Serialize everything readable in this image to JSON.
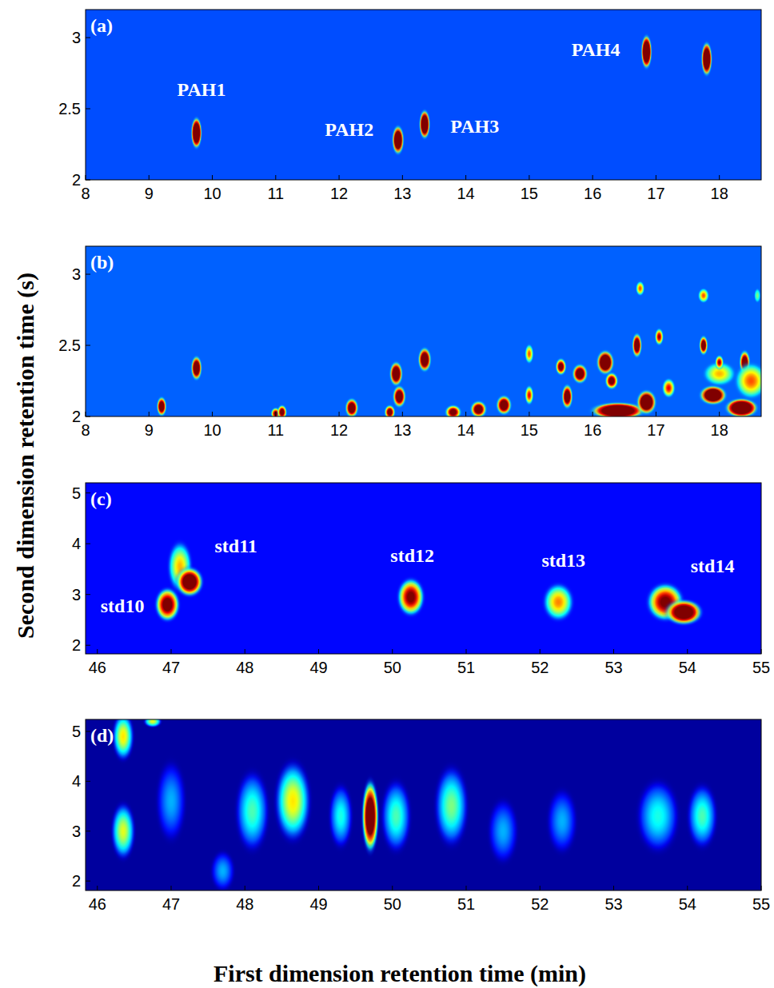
{
  "figure": {
    "xlabel": "First dimension retention time (min)",
    "ylabel": "Second dimension retention time (s)"
  },
  "chart_data": [
    {
      "type": "heatmap",
      "title": "(a)",
      "xlim": [
        8,
        18.66
      ],
      "ylim": [
        2,
        3.197
      ],
      "xticks": [
        8,
        9,
        10,
        11,
        12,
        13,
        14,
        15,
        16,
        17,
        18
      ],
      "yticks": [
        2,
        2.5,
        3
      ],
      "zlim": [
        0,
        1
      ],
      "baseline": 0.2,
      "peaks": [
        {
          "x": 9.75,
          "y": 2.33,
          "value": 1.8,
          "dx": 0.1,
          "dy": 0.13
        },
        {
          "x": 12.93,
          "y": 2.28,
          "value": 1.6,
          "dx": 0.11,
          "dy": 0.12
        },
        {
          "x": 13.35,
          "y": 2.39,
          "value": 1.7,
          "dx": 0.1,
          "dy": 0.12
        },
        {
          "x": 16.85,
          "y": 2.9,
          "value": 1.8,
          "dx": 0.1,
          "dy": 0.14
        },
        {
          "x": 17.8,
          "y": 2.85,
          "value": 1.7,
          "dx": 0.1,
          "dy": 0.14
        }
      ],
      "annotations": [
        {
          "text": "PAH1",
          "x": 9.83,
          "y": 2.62
        },
        {
          "text": "PAH2",
          "x": 12.16,
          "y": 2.34
        },
        {
          "text": "PAH3",
          "x": 14.14,
          "y": 2.36
        },
        {
          "text": "PAH4",
          "x": 16.05,
          "y": 2.9
        }
      ]
    },
    {
      "type": "heatmap",
      "title": "(b)",
      "xlim": [
        8,
        18.66
      ],
      "ylim": [
        2,
        3.197
      ],
      "xticks": [
        8,
        9,
        10,
        11,
        12,
        13,
        14,
        15,
        16,
        17,
        18
      ],
      "yticks": [
        2,
        2.5,
        3
      ],
      "zlim": [
        0,
        1
      ],
      "baseline": 0.22,
      "peaks": [
        {
          "x": 9.2,
          "y": 2.07,
          "value": 1.4,
          "dx": 0.09,
          "dy": 0.08
        },
        {
          "x": 9.75,
          "y": 2.34,
          "value": 1.5,
          "dx": 0.1,
          "dy": 0.1
        },
        {
          "x": 11.0,
          "y": 2.02,
          "value": 1.1,
          "dx": 0.09,
          "dy": 0.05
        },
        {
          "x": 11.1,
          "y": 2.03,
          "value": 1.2,
          "dx": 0.09,
          "dy": 0.06
        },
        {
          "x": 12.2,
          "y": 2.06,
          "value": 1.4,
          "dx": 0.12,
          "dy": 0.08
        },
        {
          "x": 12.9,
          "y": 2.3,
          "value": 1.5,
          "dx": 0.12,
          "dy": 0.1
        },
        {
          "x": 12.95,
          "y": 2.14,
          "value": 1.4,
          "dx": 0.12,
          "dy": 0.09
        },
        {
          "x": 12.8,
          "y": 2.03,
          "value": 1.2,
          "dx": 0.1,
          "dy": 0.06
        },
        {
          "x": 13.35,
          "y": 2.4,
          "value": 1.5,
          "dx": 0.12,
          "dy": 0.1
        },
        {
          "x": 13.8,
          "y": 2.03,
          "value": 1.2,
          "dx": 0.15,
          "dy": 0.06
        },
        {
          "x": 14.2,
          "y": 2.05,
          "value": 1.3,
          "dx": 0.15,
          "dy": 0.07
        },
        {
          "x": 14.6,
          "y": 2.08,
          "value": 1.4,
          "dx": 0.14,
          "dy": 0.08
        },
        {
          "x": 15.0,
          "y": 2.44,
          "value": 0.8,
          "dx": 0.08,
          "dy": 0.08
        },
        {
          "x": 15.0,
          "y": 2.15,
          "value": 0.9,
          "dx": 0.08,
          "dy": 0.08
        },
        {
          "x": 15.5,
          "y": 2.35,
          "value": 1.2,
          "dx": 0.1,
          "dy": 0.07
        },
        {
          "x": 15.6,
          "y": 2.14,
          "value": 1.4,
          "dx": 0.1,
          "dy": 0.1
        },
        {
          "x": 15.8,
          "y": 2.3,
          "value": 1.4,
          "dx": 0.14,
          "dy": 0.08
        },
        {
          "x": 16.2,
          "y": 2.38,
          "value": 1.6,
          "dx": 0.16,
          "dy": 0.1
        },
        {
          "x": 16.3,
          "y": 2.25,
          "value": 1.2,
          "dx": 0.12,
          "dy": 0.07
        },
        {
          "x": 16.4,
          "y": 2.04,
          "value": 1.8,
          "dx": 0.5,
          "dy": 0.07
        },
        {
          "x": 16.7,
          "y": 2.5,
          "value": 1.4,
          "dx": 0.09,
          "dy": 0.1
        },
        {
          "x": 16.75,
          "y": 2.9,
          "value": 0.8,
          "dx": 0.08,
          "dy": 0.06
        },
        {
          "x": 16.85,
          "y": 2.1,
          "value": 1.6,
          "dx": 0.18,
          "dy": 0.1
        },
        {
          "x": 17.05,
          "y": 2.56,
          "value": 1.0,
          "dx": 0.08,
          "dy": 0.07
        },
        {
          "x": 17.2,
          "y": 2.2,
          "value": 0.9,
          "dx": 0.12,
          "dy": 0.08
        },
        {
          "x": 17.75,
          "y": 2.85,
          "value": 0.8,
          "dx": 0.1,
          "dy": 0.06
        },
        {
          "x": 17.75,
          "y": 2.5,
          "value": 1.3,
          "dx": 0.08,
          "dy": 0.08
        },
        {
          "x": 17.9,
          "y": 2.15,
          "value": 1.6,
          "dx": 0.25,
          "dy": 0.08
        },
        {
          "x": 18.0,
          "y": 2.3,
          "value": 0.7,
          "dx": 0.3,
          "dy": 0.1
        },
        {
          "x": 18.0,
          "y": 2.38,
          "value": 1.0,
          "dx": 0.08,
          "dy": 0.06
        },
        {
          "x": 18.4,
          "y": 2.38,
          "value": 1.3,
          "dx": 0.1,
          "dy": 0.1
        },
        {
          "x": 18.35,
          "y": 2.06,
          "value": 1.8,
          "dx": 0.3,
          "dy": 0.08
        },
        {
          "x": 18.5,
          "y": 2.25,
          "value": 0.8,
          "dx": 0.3,
          "dy": 0.15
        },
        {
          "x": 18.6,
          "y": 2.85,
          "value": 0.5,
          "dx": 0.06,
          "dy": 0.06
        }
      ],
      "annotations": []
    },
    {
      "type": "heatmap",
      "title": "(c)",
      "xlim": [
        45.84,
        55
      ],
      "ylim": [
        1.83,
        5.2
      ],
      "xticks": [
        46,
        47,
        48,
        49,
        50,
        51,
        52,
        53,
        54,
        55
      ],
      "yticks": [
        2,
        3,
        4,
        5
      ],
      "zlim": [
        0,
        1
      ],
      "baseline": 0.13,
      "peaks": [
        {
          "x": 46.95,
          "y": 2.8,
          "value": 1.2,
          "dx": 0.2,
          "dy": 0.4
        },
        {
          "x": 47.12,
          "y": 3.55,
          "value": 0.7,
          "dx": 0.2,
          "dy": 0.6
        },
        {
          "x": 47.25,
          "y": 3.25,
          "value": 1.4,
          "dx": 0.22,
          "dy": 0.35
        },
        {
          "x": 50.25,
          "y": 2.95,
          "value": 1.1,
          "dx": 0.22,
          "dy": 0.45
        },
        {
          "x": 52.25,
          "y": 2.85,
          "value": 0.75,
          "dx": 0.25,
          "dy": 0.45
        },
        {
          "x": 53.7,
          "y": 2.85,
          "value": 1.1,
          "dx": 0.3,
          "dy": 0.45
        },
        {
          "x": 53.95,
          "y": 2.65,
          "value": 1.5,
          "dx": 0.3,
          "dy": 0.3
        }
      ],
      "annotations": [
        {
          "text": "std10",
          "x": 46.34,
          "y": 2.74
        },
        {
          "text": "std11",
          "x": 47.88,
          "y": 3.91
        },
        {
          "text": "std12",
          "x": 50.27,
          "y": 3.72
        },
        {
          "text": "std13",
          "x": 52.32,
          "y": 3.64
        },
        {
          "text": "std14",
          "x": 54.34,
          "y": 3.53
        }
      ]
    },
    {
      "type": "heatmap",
      "title": "(d)",
      "xlim": [
        45.84,
        55
      ],
      "ylim": [
        1.81,
        5.24
      ],
      "xticks": [
        46,
        47,
        48,
        49,
        50,
        51,
        52,
        53,
        54,
        55
      ],
      "yticks": [
        2,
        3,
        4,
        5
      ],
      "zlim": [
        0,
        1
      ],
      "baseline": 0.03,
      "peaks": [
        {
          "x": 46.35,
          "y": 3.0,
          "value": 0.6,
          "dx": 0.2,
          "dy": 0.7
        },
        {
          "x": 46.35,
          "y": 4.9,
          "value": 0.65,
          "dx": 0.18,
          "dy": 0.6
        },
        {
          "x": 46.75,
          "y": 5.2,
          "value": 0.6,
          "dx": 0.15,
          "dy": 0.15
        },
        {
          "x": 47.0,
          "y": 3.6,
          "value": 0.3,
          "dx": 0.25,
          "dy": 1.0
        },
        {
          "x": 47.7,
          "y": 2.2,
          "value": 0.3,
          "dx": 0.2,
          "dy": 0.5
        },
        {
          "x": 48.1,
          "y": 3.4,
          "value": 0.45,
          "dx": 0.28,
          "dy": 1.0
        },
        {
          "x": 48.65,
          "y": 3.6,
          "value": 0.65,
          "dx": 0.3,
          "dy": 1.0
        },
        {
          "x": 49.3,
          "y": 3.3,
          "value": 0.4,
          "dx": 0.2,
          "dy": 0.8
        },
        {
          "x": 49.7,
          "y": 3.3,
          "value": 1.4,
          "dx": 0.14,
          "dy": 0.9
        },
        {
          "x": 50.05,
          "y": 3.3,
          "value": 0.45,
          "dx": 0.25,
          "dy": 0.9
        },
        {
          "x": 50.8,
          "y": 3.5,
          "value": 0.5,
          "dx": 0.28,
          "dy": 1.0
        },
        {
          "x": 51.5,
          "y": 3.0,
          "value": 0.3,
          "dx": 0.25,
          "dy": 0.8
        },
        {
          "x": 52.3,
          "y": 3.2,
          "value": 0.3,
          "dx": 0.25,
          "dy": 0.8
        },
        {
          "x": 53.6,
          "y": 3.3,
          "value": 0.4,
          "dx": 0.35,
          "dy": 0.9
        },
        {
          "x": 54.2,
          "y": 3.3,
          "value": 0.45,
          "dx": 0.25,
          "dy": 0.8
        }
      ],
      "annotations": []
    }
  ]
}
